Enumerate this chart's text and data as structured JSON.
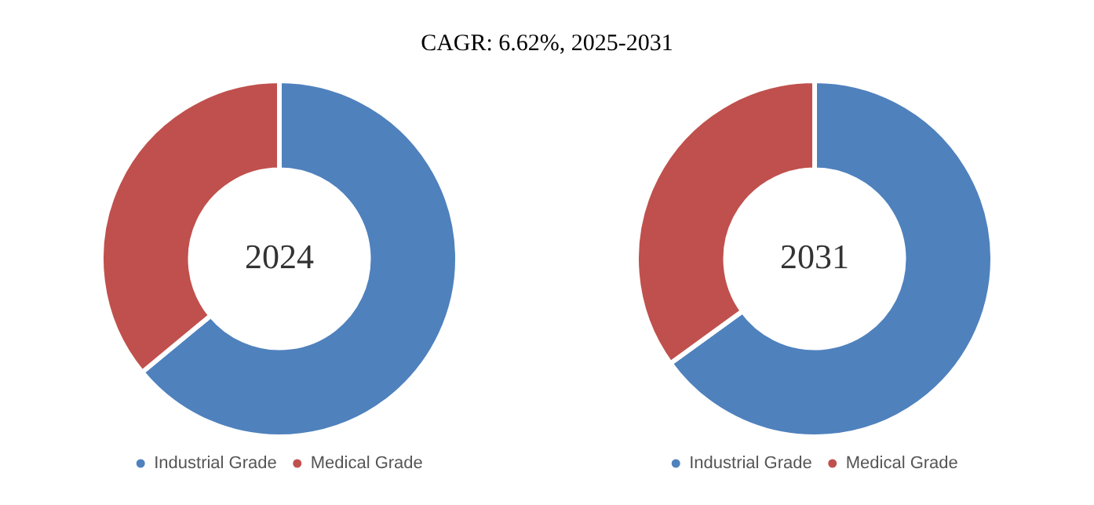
{
  "chart_data": [
    {
      "type": "donut",
      "title": "CAGR:  6.62%, 2025-2031",
      "categories": [
        "Industrial Grade",
        "Medical Grade"
      ],
      "values": [
        64,
        36
      ],
      "colors": [
        "#4f81bd",
        "#c0504d"
      ],
      "annotations": [
        "2024"
      ],
      "legend": "bottom"
    },
    {
      "type": "donut",
      "categories": [
        "Industrial Grade",
        "Medical Grade"
      ],
      "values": [
        65,
        35
      ],
      "colors": [
        "#4f81bd",
        "#c0504d"
      ],
      "annotations": [
        "2031"
      ],
      "legend": "bottom"
    }
  ]
}
